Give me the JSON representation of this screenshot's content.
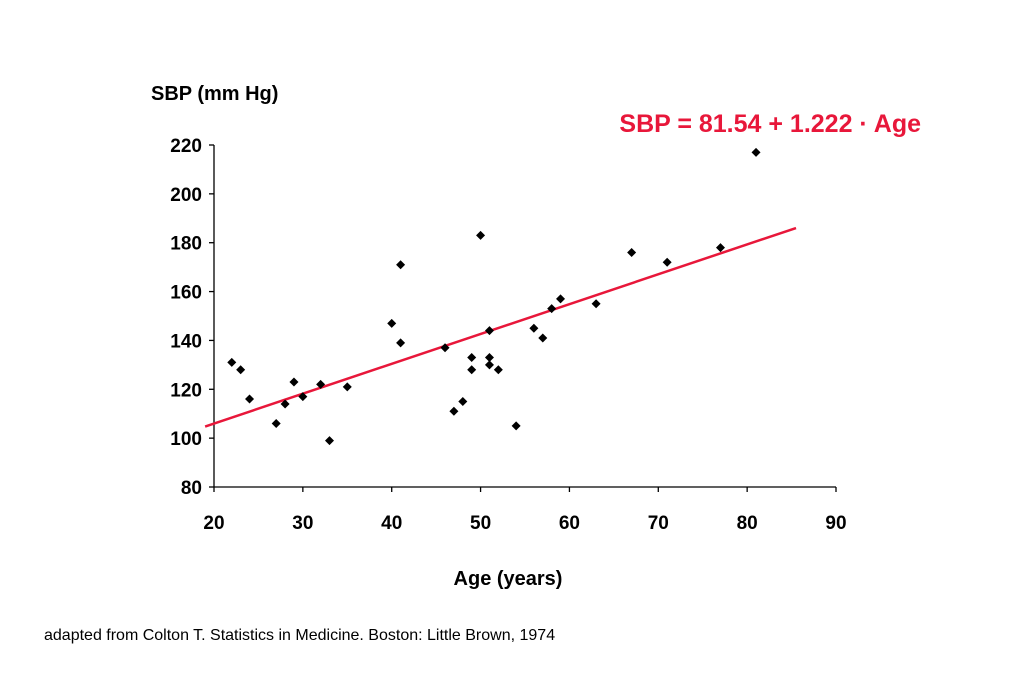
{
  "chart_data": {
    "type": "scatter",
    "ylabel": "SBP (mm Hg)",
    "xlabel": "Age (years)",
    "xlim": [
      20,
      90
    ],
    "ylim": [
      80,
      220
    ],
    "xticks": [
      20,
      30,
      40,
      50,
      60,
      70,
      80,
      90
    ],
    "yticks": [
      80,
      100,
      120,
      140,
      160,
      180,
      200,
      220
    ],
    "points": [
      {
        "x": 22,
        "y": 131
      },
      {
        "x": 23,
        "y": 128
      },
      {
        "x": 24,
        "y": 116
      },
      {
        "x": 27,
        "y": 106
      },
      {
        "x": 28,
        "y": 114
      },
      {
        "x": 29,
        "y": 123
      },
      {
        "x": 30,
        "y": 117
      },
      {
        "x": 32,
        "y": 122
      },
      {
        "x": 33,
        "y": 99
      },
      {
        "x": 35,
        "y": 121
      },
      {
        "x": 40,
        "y": 147
      },
      {
        "x": 41,
        "y": 139
      },
      {
        "x": 41,
        "y": 171
      },
      {
        "x": 46,
        "y": 137
      },
      {
        "x": 47,
        "y": 111
      },
      {
        "x": 48,
        "y": 115
      },
      {
        "x": 49,
        "y": 133
      },
      {
        "x": 49,
        "y": 128
      },
      {
        "x": 50,
        "y": 183
      },
      {
        "x": 51,
        "y": 130
      },
      {
        "x": 51,
        "y": 133
      },
      {
        "x": 51,
        "y": 144
      },
      {
        "x": 52,
        "y": 128
      },
      {
        "x": 54,
        "y": 105
      },
      {
        "x": 56,
        "y": 145
      },
      {
        "x": 57,
        "y": 141
      },
      {
        "x": 58,
        "y": 153
      },
      {
        "x": 59,
        "y": 157
      },
      {
        "x": 63,
        "y": 155
      },
      {
        "x": 67,
        "y": 176
      },
      {
        "x": 71,
        "y": 172
      },
      {
        "x": 77,
        "y": 178
      },
      {
        "x": 81,
        "y": 217
      }
    ],
    "regression": {
      "intercept": 81.54,
      "slope": 1.222,
      "x_start": 19,
      "x_end": 85.5,
      "equation_label": "SBP = 81.54 + 1.222 · Age",
      "color": "#e8173a"
    },
    "marker_color": "#000000",
    "grid": false
  },
  "source_note": "adapted from Colton T. Statistics in Medicine. Boston: Little Brown, 1974"
}
